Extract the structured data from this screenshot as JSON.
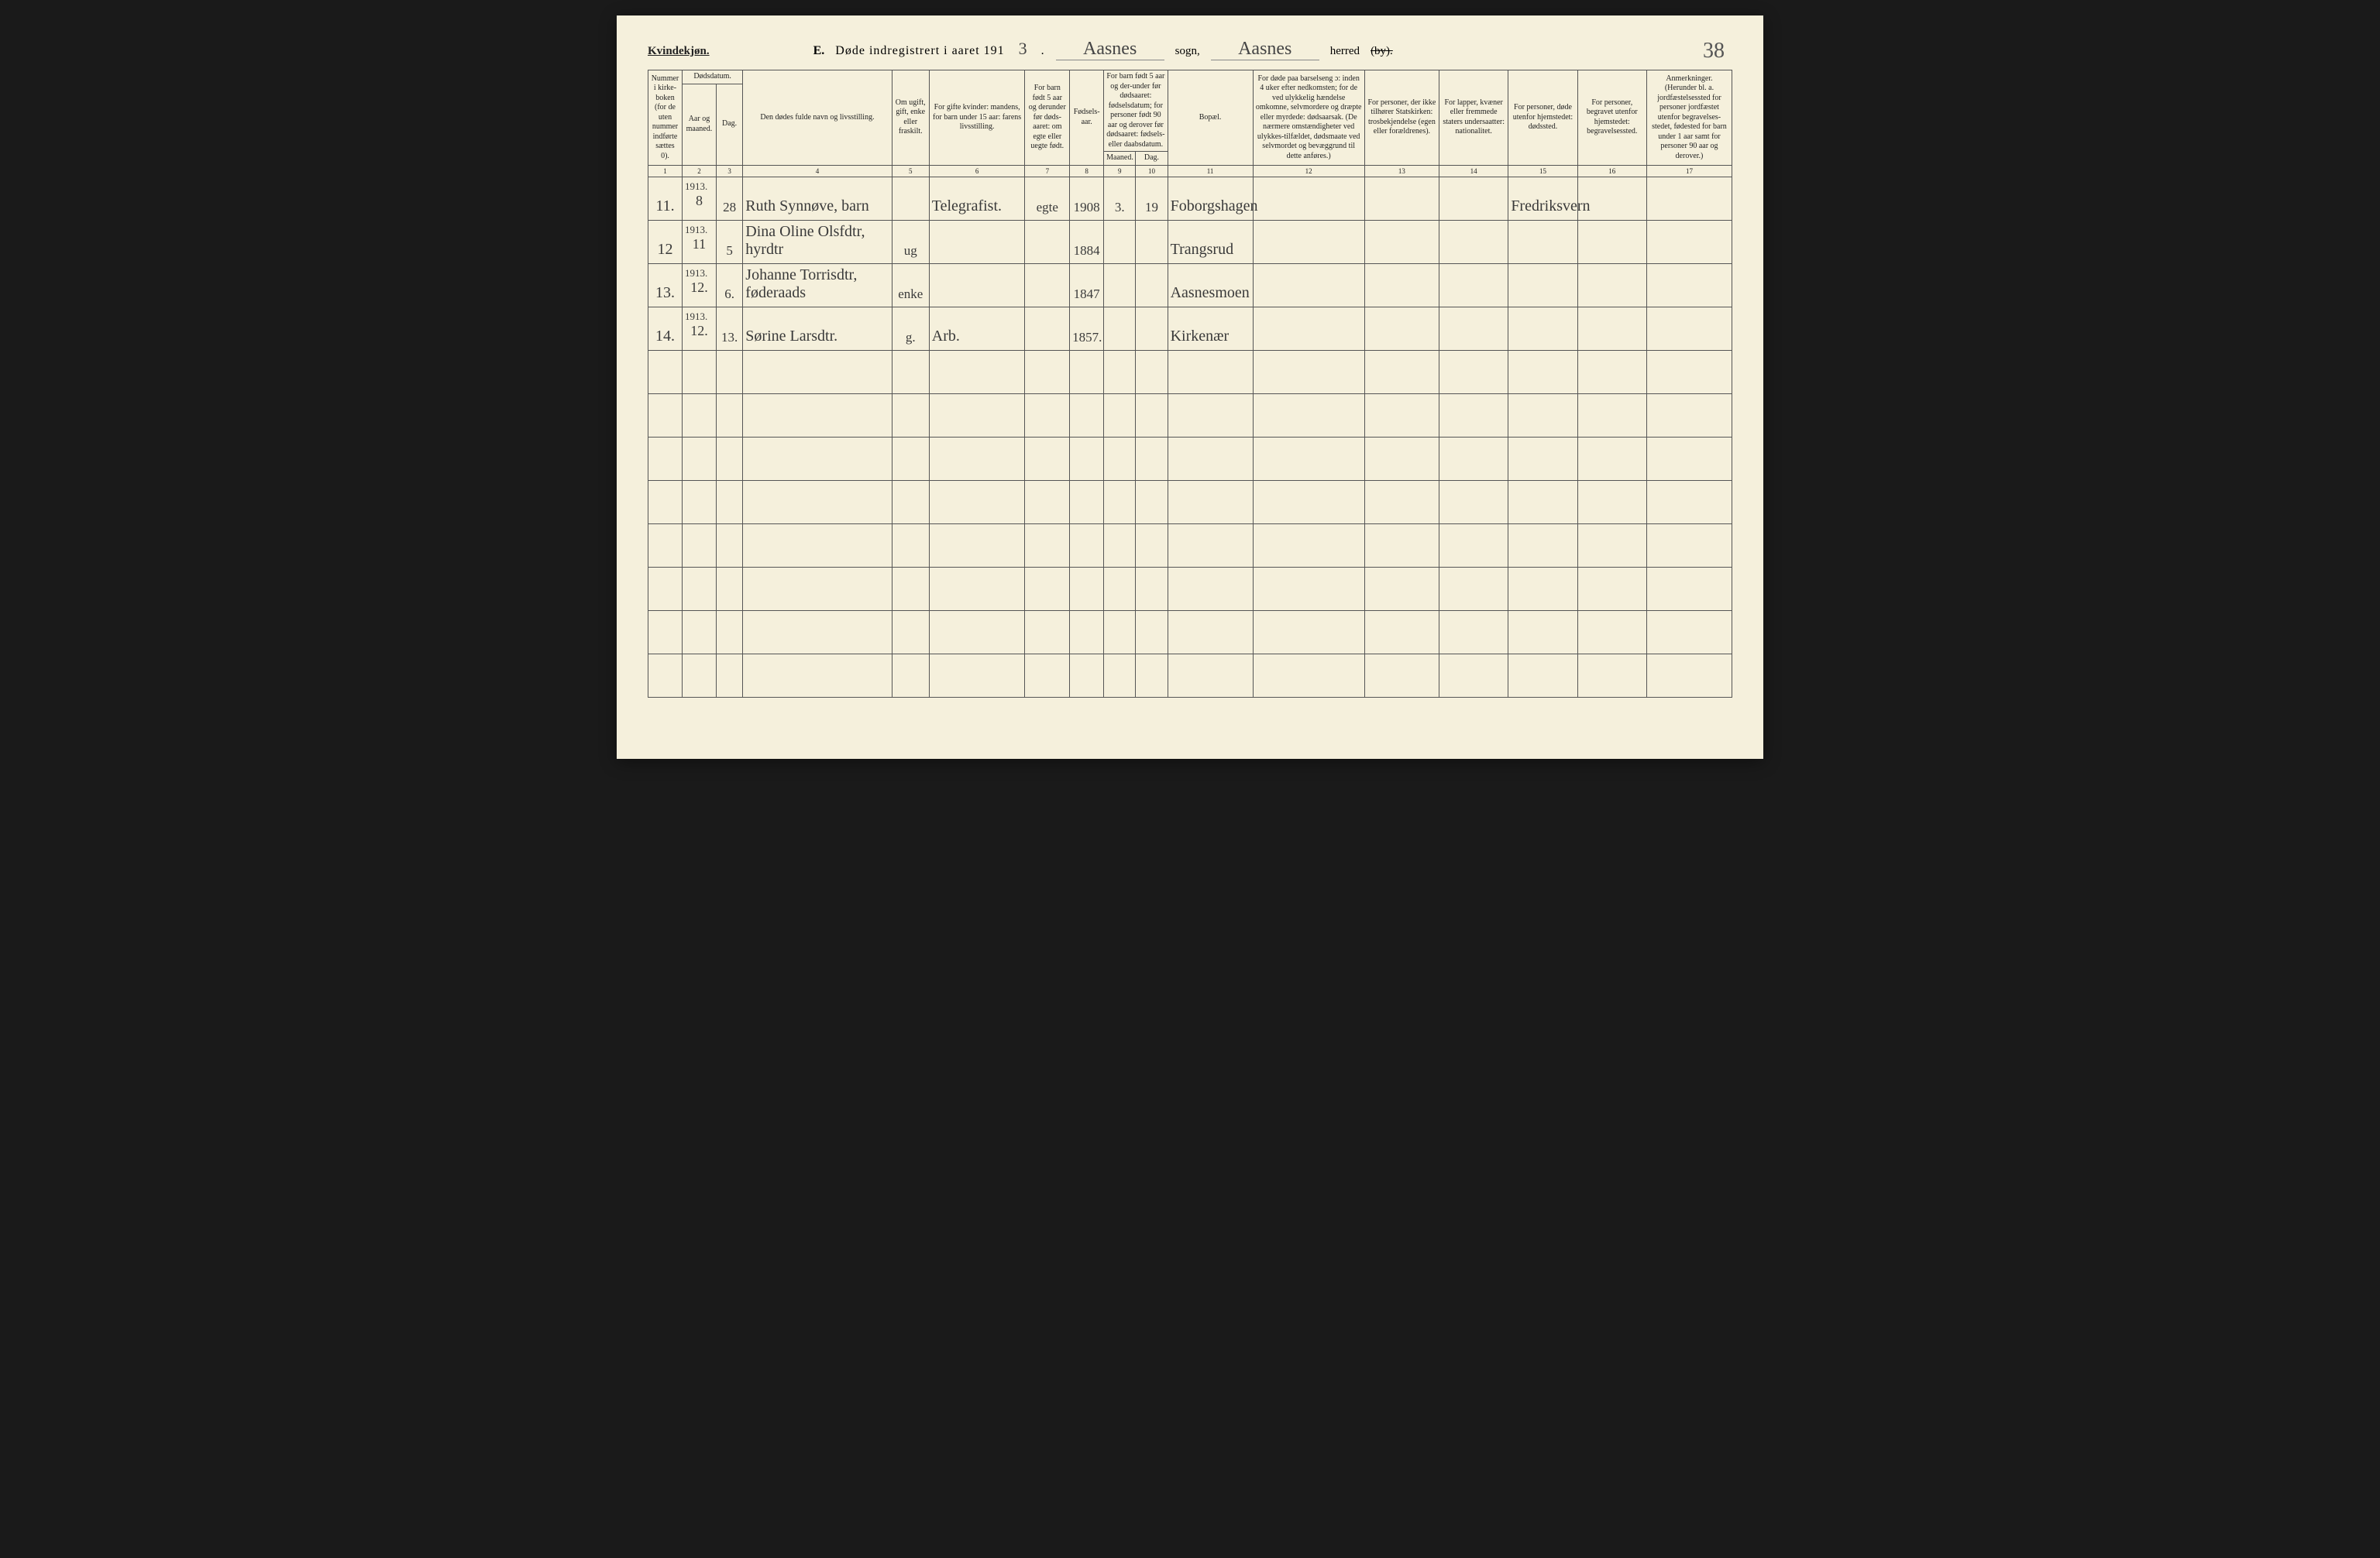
{
  "page_number_corner": "38",
  "colors": {
    "paper": "#f5f0dc",
    "rule": "#555555",
    "ink_print": "#222222",
    "ink_hand": "#3a3a3a",
    "backdrop": "#1a1a1a"
  },
  "typography": {
    "print_family": "Times New Roman",
    "hand_family": "Brush Script MT",
    "header_fontsize_pt": 12,
    "body_fontsize_pt": 8,
    "hand_fontsize_pt": 16
  },
  "header": {
    "gender_label": "Kvindekjøn.",
    "section_letter": "E.",
    "title": "Døde indregistrert i aaret 191",
    "year_last_digit": "3",
    "sogn_value": "Aasnes",
    "sogn_label": "sogn,",
    "herred_value": "Aasnes",
    "herred_label": "herred",
    "strikethrough_suffix": "(by)."
  },
  "columns": {
    "c1": "Nummer i kirke-boken (for de uten nummer indførte sættes 0).",
    "c2_group": "Dødsdatum.",
    "c2": "Aar og maaned.",
    "c3": "Dag.",
    "c4": "Den dødes fulde navn og livsstilling.",
    "c5": "Om ugift, gift, enke eller fraskilt.",
    "c6": "For gifte kvinder: mandens, for barn under 15 aar: farens livsstilling.",
    "c7": "For barn født 5 aar og derunder før døds-aaret: om egte eller uegte født.",
    "c8": "Fødsels-aar.",
    "c9_10_group": "For barn født 5 aar og der-under før dødsaaret: fødselsdatum; for personer født 90 aar og derover før dødsaaret: fødsels- eller daabsdatum.",
    "c9": "Maaned.",
    "c10": "Dag.",
    "c11": "Bopæl.",
    "c12": "For døde paa barselseng ɔ: inden 4 uker efter nedkomsten; for de ved ulykkelig hændelse omkomne, selvmordere og dræpte eller myrdede: dødsaarsak. (De nærmere omstændigheter ved ulykkes-tilfældet, dødsmaate ved selvmordet og bevæggrund til dette anføres.)",
    "c13": "For personer, der ikke tilhører Statskirken: trosbekjendelse (egen eller forældrenes).",
    "c14": "For lapper, kvæner eller fremmede staters undersaatter: nationalitet.",
    "c15": "For personer, døde utenfor hjemstedet: dødssted.",
    "c16": "For personer, begravet utenfor hjemstedet: begravelsessted.",
    "c17": "Anmerkninger. (Herunder bl. a. jordfæstelsessted for personer jordfæstet utenfor begravelses-stedet, fødested for barn under 1 aar samt for personer 90 aar og derover.)"
  },
  "colnums": [
    "1",
    "2",
    "3",
    "4",
    "5",
    "6",
    "7",
    "8",
    "9",
    "10",
    "11",
    "12",
    "13",
    "14",
    "15",
    "16",
    "17"
  ],
  "rows": [
    {
      "num": "11.",
      "year_month_sup": "1913.",
      "year_month": "8",
      "day": "28",
      "name": "Ruth Synnøve, barn",
      "civil": "",
      "occupation": "Telegrafist.",
      "legitimacy": "egte",
      "birth_year": "1908",
      "birth_month": "3.",
      "birth_day": "19",
      "residence": "Foborgshagen",
      "c12": "",
      "c13": "",
      "c14": "",
      "death_place": "Fredriksvern",
      "c16": "",
      "c17": ""
    },
    {
      "num": "12",
      "year_month_sup": "1913.",
      "year_month": "11",
      "day": "5",
      "name": "Dina Oline Olsfdtr, hyrdtr",
      "civil": "ug",
      "occupation": "",
      "legitimacy": "",
      "birth_year": "1884",
      "birth_month": "",
      "birth_day": "",
      "residence": "Trangsrud",
      "c12": "",
      "c13": "",
      "c14": "",
      "death_place": "",
      "c16": "",
      "c17": ""
    },
    {
      "num": "13.",
      "year_month_sup": "1913.",
      "year_month": "12.",
      "day": "6.",
      "name": "Johanne Torrisdtr, føderaads",
      "civil": "enke",
      "occupation": "",
      "legitimacy": "",
      "birth_year": "1847",
      "birth_month": "",
      "birth_day": "",
      "residence": "Aasnesmoen",
      "c12": "",
      "c13": "",
      "c14": "",
      "death_place": "",
      "c16": "",
      "c17": ""
    },
    {
      "num": "14.",
      "year_month_sup": "1913.",
      "year_month": "12.",
      "day": "13.",
      "name": "Sørine Larsdtr.",
      "civil": "g.",
      "occupation": "Arb.",
      "legitimacy": "",
      "birth_year": "1857.",
      "birth_month": "",
      "birth_day": "",
      "residence": "Kirkenær",
      "c12": "",
      "c13": "",
      "c14": "",
      "death_place": "",
      "c16": "",
      "c17": ""
    }
  ],
  "empty_row_count": 8
}
